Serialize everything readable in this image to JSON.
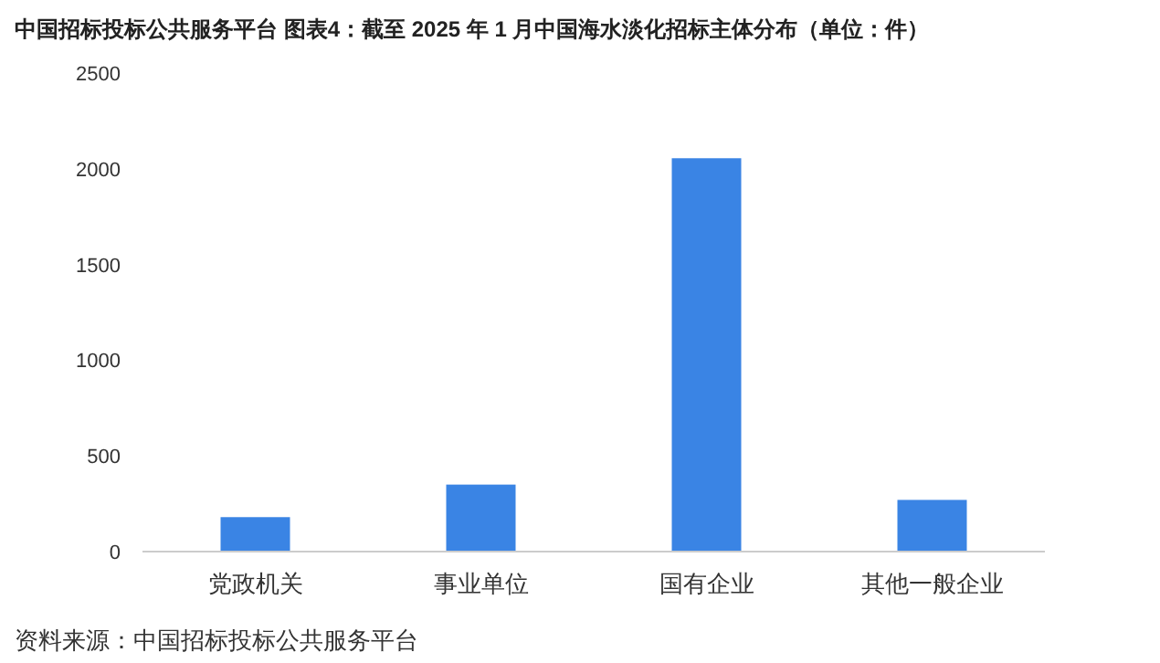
{
  "chart_data": {
    "type": "bar",
    "title": "中国招标投标公共服务平台  图表4：截至 2025 年 1 月中国海水淡化招标主体分布（单位：件）",
    "categories": [
      "党政机关",
      "事业单位",
      "国有企业",
      "其他一般企业"
    ],
    "values": [
      180,
      350,
      2055,
      270
    ],
    "color": "#3a84e4",
    "ylim": [
      0,
      2500
    ],
    "yticks": [
      0,
      500,
      1000,
      1500,
      2000,
      2500
    ],
    "grid": false,
    "annotations": [
      "资料来源：中国招标投标公共服务平台"
    ]
  }
}
